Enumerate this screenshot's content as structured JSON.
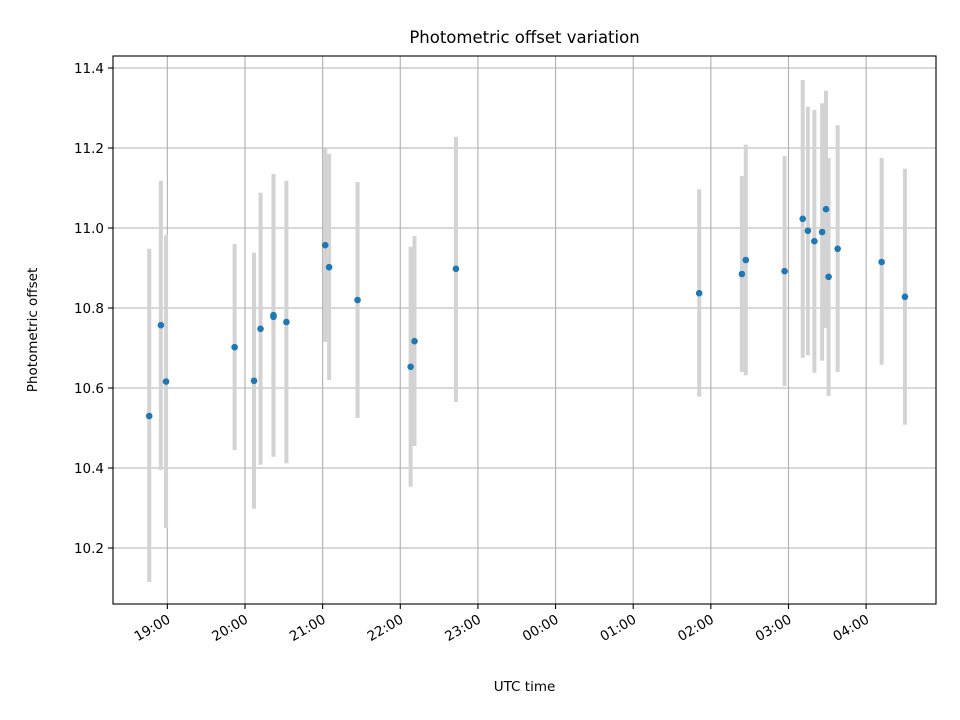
{
  "chart_data": {
    "type": "scatter",
    "title": "Photometric offset variation",
    "xlabel": "UTC time",
    "ylabel": "Photometric offset",
    "x_axis_type": "time",
    "x_ticks": [
      "19:00",
      "20:00",
      "21:00",
      "22:00",
      "23:00",
      "00:00",
      "01:00",
      "02:00",
      "03:00",
      "04:00"
    ],
    "y_ticks": [
      "10.2",
      "10.4",
      "10.6",
      "10.8",
      "11.0",
      "11.2",
      "11.4"
    ],
    "xlim": [
      "18:18",
      "04:54"
    ],
    "ylim": [
      10.06,
      11.43
    ],
    "grid": true,
    "marker_color": "#1f77b4",
    "errorbar_color": "#d3d3d3",
    "points": [
      {
        "t": "18:46",
        "y": 10.53,
        "lo": 10.115,
        "hi": 10.948
      },
      {
        "t": "18:55",
        "y": 10.757,
        "lo": 10.395,
        "hi": 11.118
      },
      {
        "t": "18:59",
        "y": 10.616,
        "lo": 10.25,
        "hi": 10.982
      },
      {
        "t": "19:52",
        "y": 10.702,
        "lo": 10.445,
        "hi": 10.96
      },
      {
        "t": "20:07",
        "y": 10.618,
        "lo": 10.298,
        "hi": 10.938
      },
      {
        "t": "20:12",
        "y": 10.748,
        "lo": 10.408,
        "hi": 11.088
      },
      {
        "t": "20:22",
        "y": 10.782,
        "lo": 10.428,
        "hi": 11.135
      },
      {
        "t": "20:22",
        "y": 10.778,
        "lo": 10.43,
        "hi": 11.13
      },
      {
        "t": "20:32",
        "y": 10.765,
        "lo": 10.412,
        "hi": 11.118
      },
      {
        "t": "21:02",
        "y": 10.957,
        "lo": 10.715,
        "hi": 11.2
      },
      {
        "t": "21:05",
        "y": 10.902,
        "lo": 10.62,
        "hi": 11.185
      },
      {
        "t": "21:27",
        "y": 10.82,
        "lo": 10.525,
        "hi": 11.115
      },
      {
        "t": "22:08",
        "y": 10.653,
        "lo": 10.353,
        "hi": 10.953
      },
      {
        "t": "22:11",
        "y": 10.717,
        "lo": 10.455,
        "hi": 10.98
      },
      {
        "t": "22:43",
        "y": 10.898,
        "lo": 10.565,
        "hi": 11.228
      },
      {
        "t": "01:51",
        "y": 10.837,
        "lo": 10.578,
        "hi": 11.097
      },
      {
        "t": "02:24",
        "y": 10.885,
        "lo": 10.64,
        "hi": 11.13
      },
      {
        "t": "02:27",
        "y": 10.92,
        "lo": 10.632,
        "hi": 11.208
      },
      {
        "t": "02:57",
        "y": 10.892,
        "lo": 10.605,
        "hi": 11.18
      },
      {
        "t": "03:11",
        "y": 11.023,
        "lo": 10.675,
        "hi": 11.37
      },
      {
        "t": "03:15",
        "y": 10.993,
        "lo": 10.682,
        "hi": 11.303
      },
      {
        "t": "03:20",
        "y": 10.967,
        "lo": 10.638,
        "hi": 11.295
      },
      {
        "t": "03:26",
        "y": 10.99,
        "lo": 10.668,
        "hi": 11.312
      },
      {
        "t": "03:29",
        "y": 11.047,
        "lo": 10.75,
        "hi": 11.343
      },
      {
        "t": "03:31",
        "y": 10.878,
        "lo": 10.58,
        "hi": 11.175
      },
      {
        "t": "03:38",
        "y": 10.948,
        "lo": 10.64,
        "hi": 11.257
      },
      {
        "t": "04:12",
        "y": 10.915,
        "lo": 10.658,
        "hi": 11.175
      },
      {
        "t": "04:30",
        "y": 10.828,
        "lo": 10.508,
        "hi": 11.148
      }
    ]
  }
}
